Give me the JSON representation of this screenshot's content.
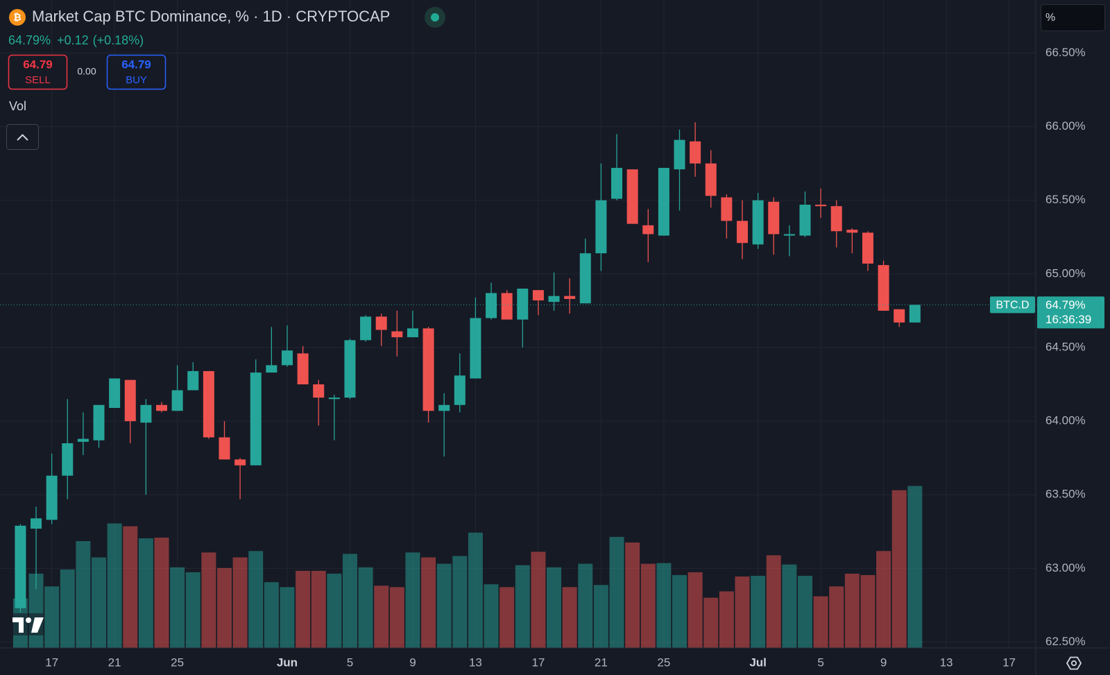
{
  "chart_data": {
    "type": "candlestick",
    "title": "Market Cap BTC Dominance, % · 1D · CRYPTOCAP",
    "last_value": "64.79%",
    "change": "+0.12",
    "change_percent": "(+0.18%)",
    "sell_price": "64.79",
    "sell_label": "SELL",
    "spread": "0.00",
    "buy_price": "64.79",
    "buy_label": "BUY",
    "volume_label": "Vol",
    "scale_mode": "%",
    "symbol": "BTC.D",
    "price_label": "64.79%",
    "countdown": "16:36:39",
    "up_color": "#26a69a",
    "down_color": "#ef5350",
    "grid": true,
    "x": [
      "05-15",
      "05-16",
      "05-17",
      "05-18",
      "05-19",
      "05-20",
      "05-21",
      "05-22",
      "05-23",
      "05-24",
      "05-25",
      "05-26",
      "05-27",
      "05-28",
      "05-29",
      "05-30",
      "05-31",
      "06-01",
      "06-02",
      "06-03",
      "06-04",
      "06-05",
      "06-06",
      "06-07",
      "06-08",
      "06-09",
      "06-10",
      "06-11",
      "06-12",
      "06-13",
      "06-14",
      "06-15",
      "06-16",
      "06-17",
      "06-18",
      "06-19",
      "06-20",
      "06-21",
      "06-22",
      "06-23",
      "06-24",
      "06-25",
      "06-26",
      "06-27",
      "06-28",
      "06-29",
      "06-30",
      "07-01",
      "07-02",
      "07-03",
      "07-04",
      "07-05",
      "07-06",
      "07-07",
      "07-08",
      "07-09",
      "07-10",
      "07-11"
    ],
    "open": [
      62.73,
      63.27,
      63.33,
      63.63,
      63.86,
      63.87,
      64.09,
      64.28,
      63.99,
      64.11,
      64.07,
      64.21,
      64.34,
      63.89,
      63.74,
      63.7,
      64.33,
      64.38,
      64.46,
      64.25,
      64.15,
      64.16,
      64.55,
      64.71,
      64.61,
      64.57,
      64.63,
      64.07,
      64.11,
      64.29,
      64.7,
      64.87,
      64.69,
      64.89,
      64.81,
      64.85,
      64.8,
      65.14,
      65.51,
      65.71,
      65.33,
      65.26,
      65.71,
      65.9,
      65.75,
      65.52,
      65.36,
      65.2,
      65.49,
      65.26,
      65.26,
      65.47,
      65.46,
      65.3,
      65.28,
      65.06,
      64.76,
      64.67
    ],
    "high": [
      63.3,
      63.42,
      63.78,
      64.15,
      64.06,
      64.11,
      64.29,
      64.28,
      64.15,
      64.13,
      64.38,
      64.4,
      64.34,
      64.0,
      63.75,
      64.42,
      64.64,
      64.65,
      64.51,
      64.28,
      64.18,
      64.56,
      64.72,
      64.73,
      64.75,
      64.75,
      64.64,
      64.19,
      64.46,
      64.84,
      64.94,
      64.89,
      64.9,
      64.89,
      65.01,
      64.97,
      65.24,
      65.75,
      65.95,
      65.71,
      65.44,
      65.72,
      65.98,
      66.03,
      65.84,
      65.54,
      65.5,
      65.55,
      65.52,
      65.33,
      65.56,
      65.58,
      65.5,
      65.31,
      65.29,
      65.09,
      64.76,
      64.79
    ],
    "low": [
      62.7,
      62.86,
      63.3,
      63.47,
      63.77,
      63.82,
      64.09,
      63.85,
      63.5,
      64.06,
      64.07,
      64.21,
      63.88,
      63.74,
      63.47,
      63.7,
      64.33,
      64.37,
      64.25,
      63.97,
      63.87,
      64.15,
      64.54,
      64.51,
      64.44,
      64.57,
      63.99,
      63.76,
      64.06,
      64.29,
      64.69,
      64.69,
      64.5,
      64.72,
      64.75,
      64.73,
      64.8,
      65.02,
      65.5,
      65.34,
      65.08,
      65.26,
      65.43,
      65.66,
      65.45,
      65.24,
      65.1,
      65.17,
      65.13,
      65.12,
      65.25,
      65.38,
      65.18,
      65.14,
      65.02,
      64.75,
      64.64,
      64.67
    ],
    "close": [
      63.29,
      63.34,
      63.63,
      63.85,
      63.88,
      64.11,
      64.29,
      64.0,
      64.11,
      64.07,
      64.21,
      64.34,
      63.89,
      63.74,
      63.7,
      64.33,
      64.38,
      64.48,
      64.25,
      64.16,
      64.16,
      64.55,
      64.71,
      64.62,
      64.57,
      64.63,
      64.07,
      64.11,
      64.31,
      64.7,
      64.87,
      64.69,
      64.9,
      64.82,
      64.85,
      64.83,
      65.14,
      65.5,
      65.72,
      65.34,
      65.27,
      65.72,
      65.91,
      65.75,
      65.53,
      65.36,
      65.21,
      65.5,
      65.27,
      65.27,
      65.47,
      65.46,
      65.29,
      65.28,
      65.07,
      64.75,
      64.67,
      64.79
    ],
    "volume": [
      70,
      105,
      87,
      111,
      151,
      128,
      176,
      172,
      155,
      156,
      114,
      107,
      135,
      113,
      128,
      137,
      93,
      86,
      109,
      109,
      105,
      133,
      114,
      88,
      86,
      135,
      128,
      119,
      130,
      163,
      90,
      86,
      117,
      136,
      114,
      86,
      119,
      89,
      157,
      149,
      119,
      120,
      103,
      107,
      71,
      80,
      101,
      102,
      131,
      118,
      102,
      73,
      87,
      105,
      103,
      137,
      223,
      229
    ],
    "xlim": [
      "05-14",
      "07-19"
    ],
    "xticks": [
      {
        "value": "05-17",
        "label": "17"
      },
      {
        "value": "05-21",
        "label": "21"
      },
      {
        "value": "05-25",
        "label": "25"
      },
      {
        "value": "06-01",
        "label": "Jun"
      },
      {
        "value": "06-05",
        "label": "5"
      },
      {
        "value": "06-09",
        "label": "9"
      },
      {
        "value": "06-13",
        "label": "13"
      },
      {
        "value": "06-17",
        "label": "17"
      },
      {
        "value": "06-21",
        "label": "21"
      },
      {
        "value": "06-25",
        "label": "25"
      },
      {
        "value": "07-01",
        "label": "Jul"
      },
      {
        "value": "07-05",
        "label": "5"
      },
      {
        "value": "07-09",
        "label": "9"
      },
      {
        "value": "07-13",
        "label": "13"
      },
      {
        "value": "07-17",
        "label": "17"
      }
    ],
    "ylim": [
      62.46,
      66.86
    ],
    "yticks": [
      {
        "value": 62.5,
        "label": "62.50%"
      },
      {
        "value": 63,
        "label": "63.00%"
      },
      {
        "value": 63.5,
        "label": "63.50%"
      },
      {
        "value": 64,
        "label": "64.00%"
      },
      {
        "value": 64.5,
        "label": "64.50%"
      },
      {
        "value": 65,
        "label": "65.00%"
      },
      {
        "value": 65.5,
        "label": "65.50%"
      },
      {
        "value": 66,
        "label": "66.00%"
      },
      {
        "value": 66.5,
        "label": "66.50%"
      }
    ]
  }
}
